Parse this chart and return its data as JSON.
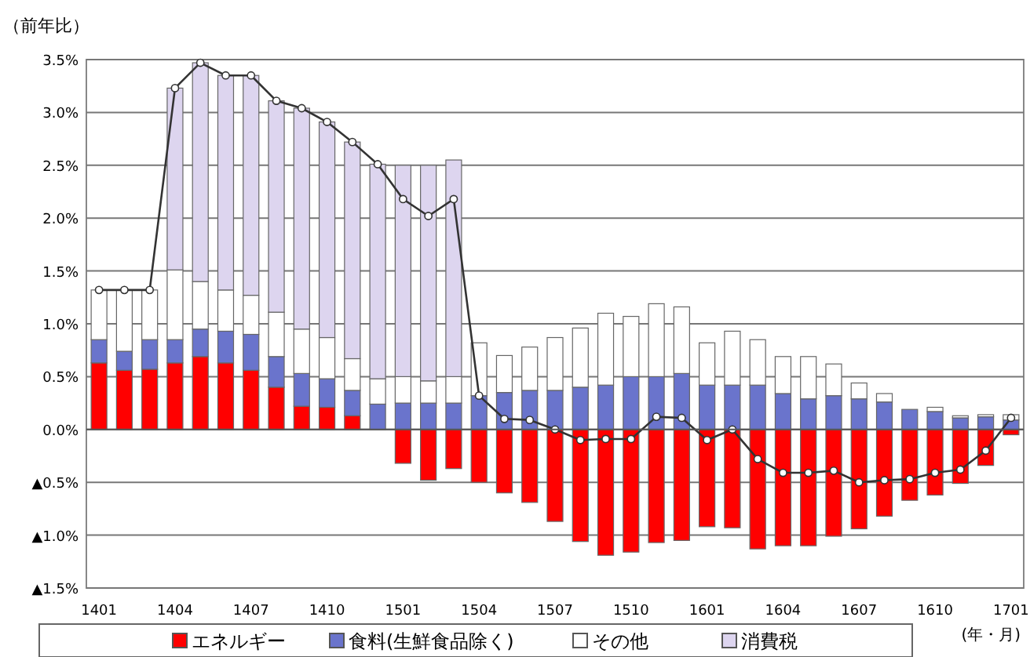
{
  "chart_data": {
    "type": "bar",
    "stacked": true,
    "ylabel": "（前年比）",
    "xlabel": "(年・月)",
    "categories": [
      "1401",
      null,
      null,
      "1404",
      null,
      null,
      "1407",
      null,
      null,
      "1410",
      null,
      null,
      "1501",
      null,
      null,
      "1504",
      null,
      null,
      "1507",
      null,
      null,
      "1510",
      null,
      null,
      "1601",
      null,
      null,
      "1604",
      null,
      null,
      "1607",
      null,
      null,
      "1610",
      null,
      null,
      "1701"
    ],
    "ylim": [
      -1.5,
      3.5
    ],
    "yticks": [
      {
        "value": -1.5,
        "label": "▲1.5%"
      },
      {
        "value": -1.0,
        "label": "▲1.0%"
      },
      {
        "value": -0.5,
        "label": "▲0.5%"
      },
      {
        "value": 0,
        "label": "0.0%"
      },
      {
        "value": 0.5,
        "label": "0.5%"
      },
      {
        "value": 1.0,
        "label": "1.0%"
      },
      {
        "value": 1.5,
        "label": "1.5%"
      },
      {
        "value": 2.0,
        "label": "2.0%"
      },
      {
        "value": 2.5,
        "label": "2.5%"
      },
      {
        "value": 3.0,
        "label": "3.0%"
      },
      {
        "value": 3.5,
        "label": "3.5%"
      }
    ],
    "grid": "y",
    "legend": "bottom",
    "marker": "circle",
    "series": [
      {
        "name": "エネルギー",
        "color": "#ff0000",
        "values": [
          0.63,
          0.56,
          0.57,
          0.63,
          0.69,
          0.63,
          0.56,
          0.4,
          0.22,
          0.21,
          0.13,
          0,
          -0.32,
          -0.48,
          -0.37,
          -0.5,
          -0.6,
          -0.69,
          -0.87,
          -1.06,
          -1.19,
          -1.16,
          -1.07,
          -1.05,
          -0.92,
          -0.93,
          -1.13,
          -1.1,
          -1.1,
          -1.01,
          -0.94,
          -0.82,
          -0.67,
          -0.62,
          -0.51,
          -0.34,
          -0.05
        ]
      },
      {
        "name": "食料(生鮮食品除く)",
        "color": "#6a74cc",
        "values": [
          0.22,
          0.18,
          0.28,
          0.22,
          0.26,
          0.3,
          0.34,
          0.29,
          0.31,
          0.27,
          0.24,
          0.24,
          0.25,
          0.25,
          0.25,
          0.32,
          0.35,
          0.37,
          0.37,
          0.4,
          0.42,
          0.5,
          0.5,
          0.53,
          0.42,
          0.42,
          0.42,
          0.34,
          0.29,
          0.32,
          0.29,
          0.26,
          0.19,
          0.17,
          0.11,
          0.12,
          0.09
        ]
      },
      {
        "name": "その他",
        "color": "#ffffff",
        "values": [
          0.47,
          0.58,
          0.47,
          0.66,
          0.45,
          0.39,
          0.37,
          0.42,
          0.42,
          0.39,
          0.3,
          0.24,
          0.25,
          0.21,
          0.25,
          0.5,
          0.35,
          0.41,
          0.5,
          0.56,
          0.68,
          0.57,
          0.69,
          0.63,
          0.4,
          0.51,
          0.43,
          0.35,
          0.4,
          0.3,
          0.15,
          0.08,
          null,
          0.04,
          0.02,
          0.02,
          0.05
        ]
      },
      {
        "name": "消費税",
        "color": "#ddd5ef",
        "values": [
          null,
          null,
          null,
          1.72,
          2.07,
          2.03,
          2.08,
          2.0,
          2.09,
          2.04,
          2.05,
          2.03,
          2.0,
          2.04,
          2.05,
          null,
          null,
          null,
          null,
          null,
          null,
          null,
          null,
          null,
          null,
          null,
          null,
          null,
          null,
          null,
          null,
          null,
          null,
          null,
          null,
          null,
          null
        ]
      },
      {
        "type": "line",
        "color": "#333333",
        "values": [
          1.32,
          1.32,
          1.32,
          3.23,
          3.47,
          3.35,
          3.35,
          3.11,
          3.04,
          2.91,
          2.72,
          2.51,
          2.18,
          2.02,
          2.18,
          0.32,
          0.1,
          0.09,
          0.0,
          -0.1,
          -0.09,
          -0.09,
          0.12,
          0.11,
          -0.1,
          0.0,
          -0.28,
          -0.41,
          -0.41,
          -0.39,
          -0.5,
          -0.48,
          -0.47,
          -0.41,
          -0.38,
          -0.2,
          0.11
        ]
      }
    ]
  }
}
